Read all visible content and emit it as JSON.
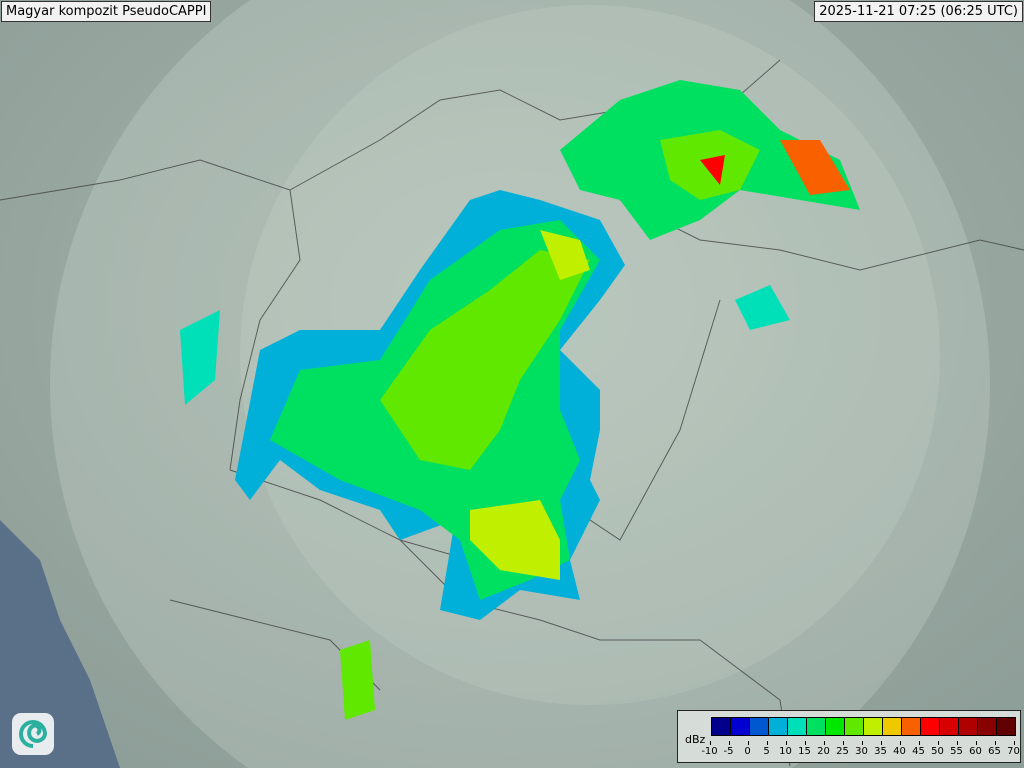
{
  "header": {
    "title": "Magyar kompozit  PseudoCAPPI",
    "timestamp": "2025-11-21 07:25 (06:25 UTC)"
  },
  "legend": {
    "unit": "dBz",
    "ticks": [
      "-10",
      "-5",
      "0",
      "5",
      "10",
      "15",
      "20",
      "25",
      "30",
      "35",
      "40",
      "45",
      "50",
      "55",
      "60",
      "65",
      "70"
    ],
    "colors": [
      "#00008c",
      "#0000d0",
      "#0058d0",
      "#00b0d8",
      "#00e0b8",
      "#00e060",
      "#00e800",
      "#60e800",
      "#c0f000",
      "#f0c800",
      "#f86000",
      "#ff0000",
      "#d80000",
      "#b00000",
      "#880000",
      "#600000"
    ]
  },
  "logo": {
    "icon": "swirl-logo-icon"
  }
}
